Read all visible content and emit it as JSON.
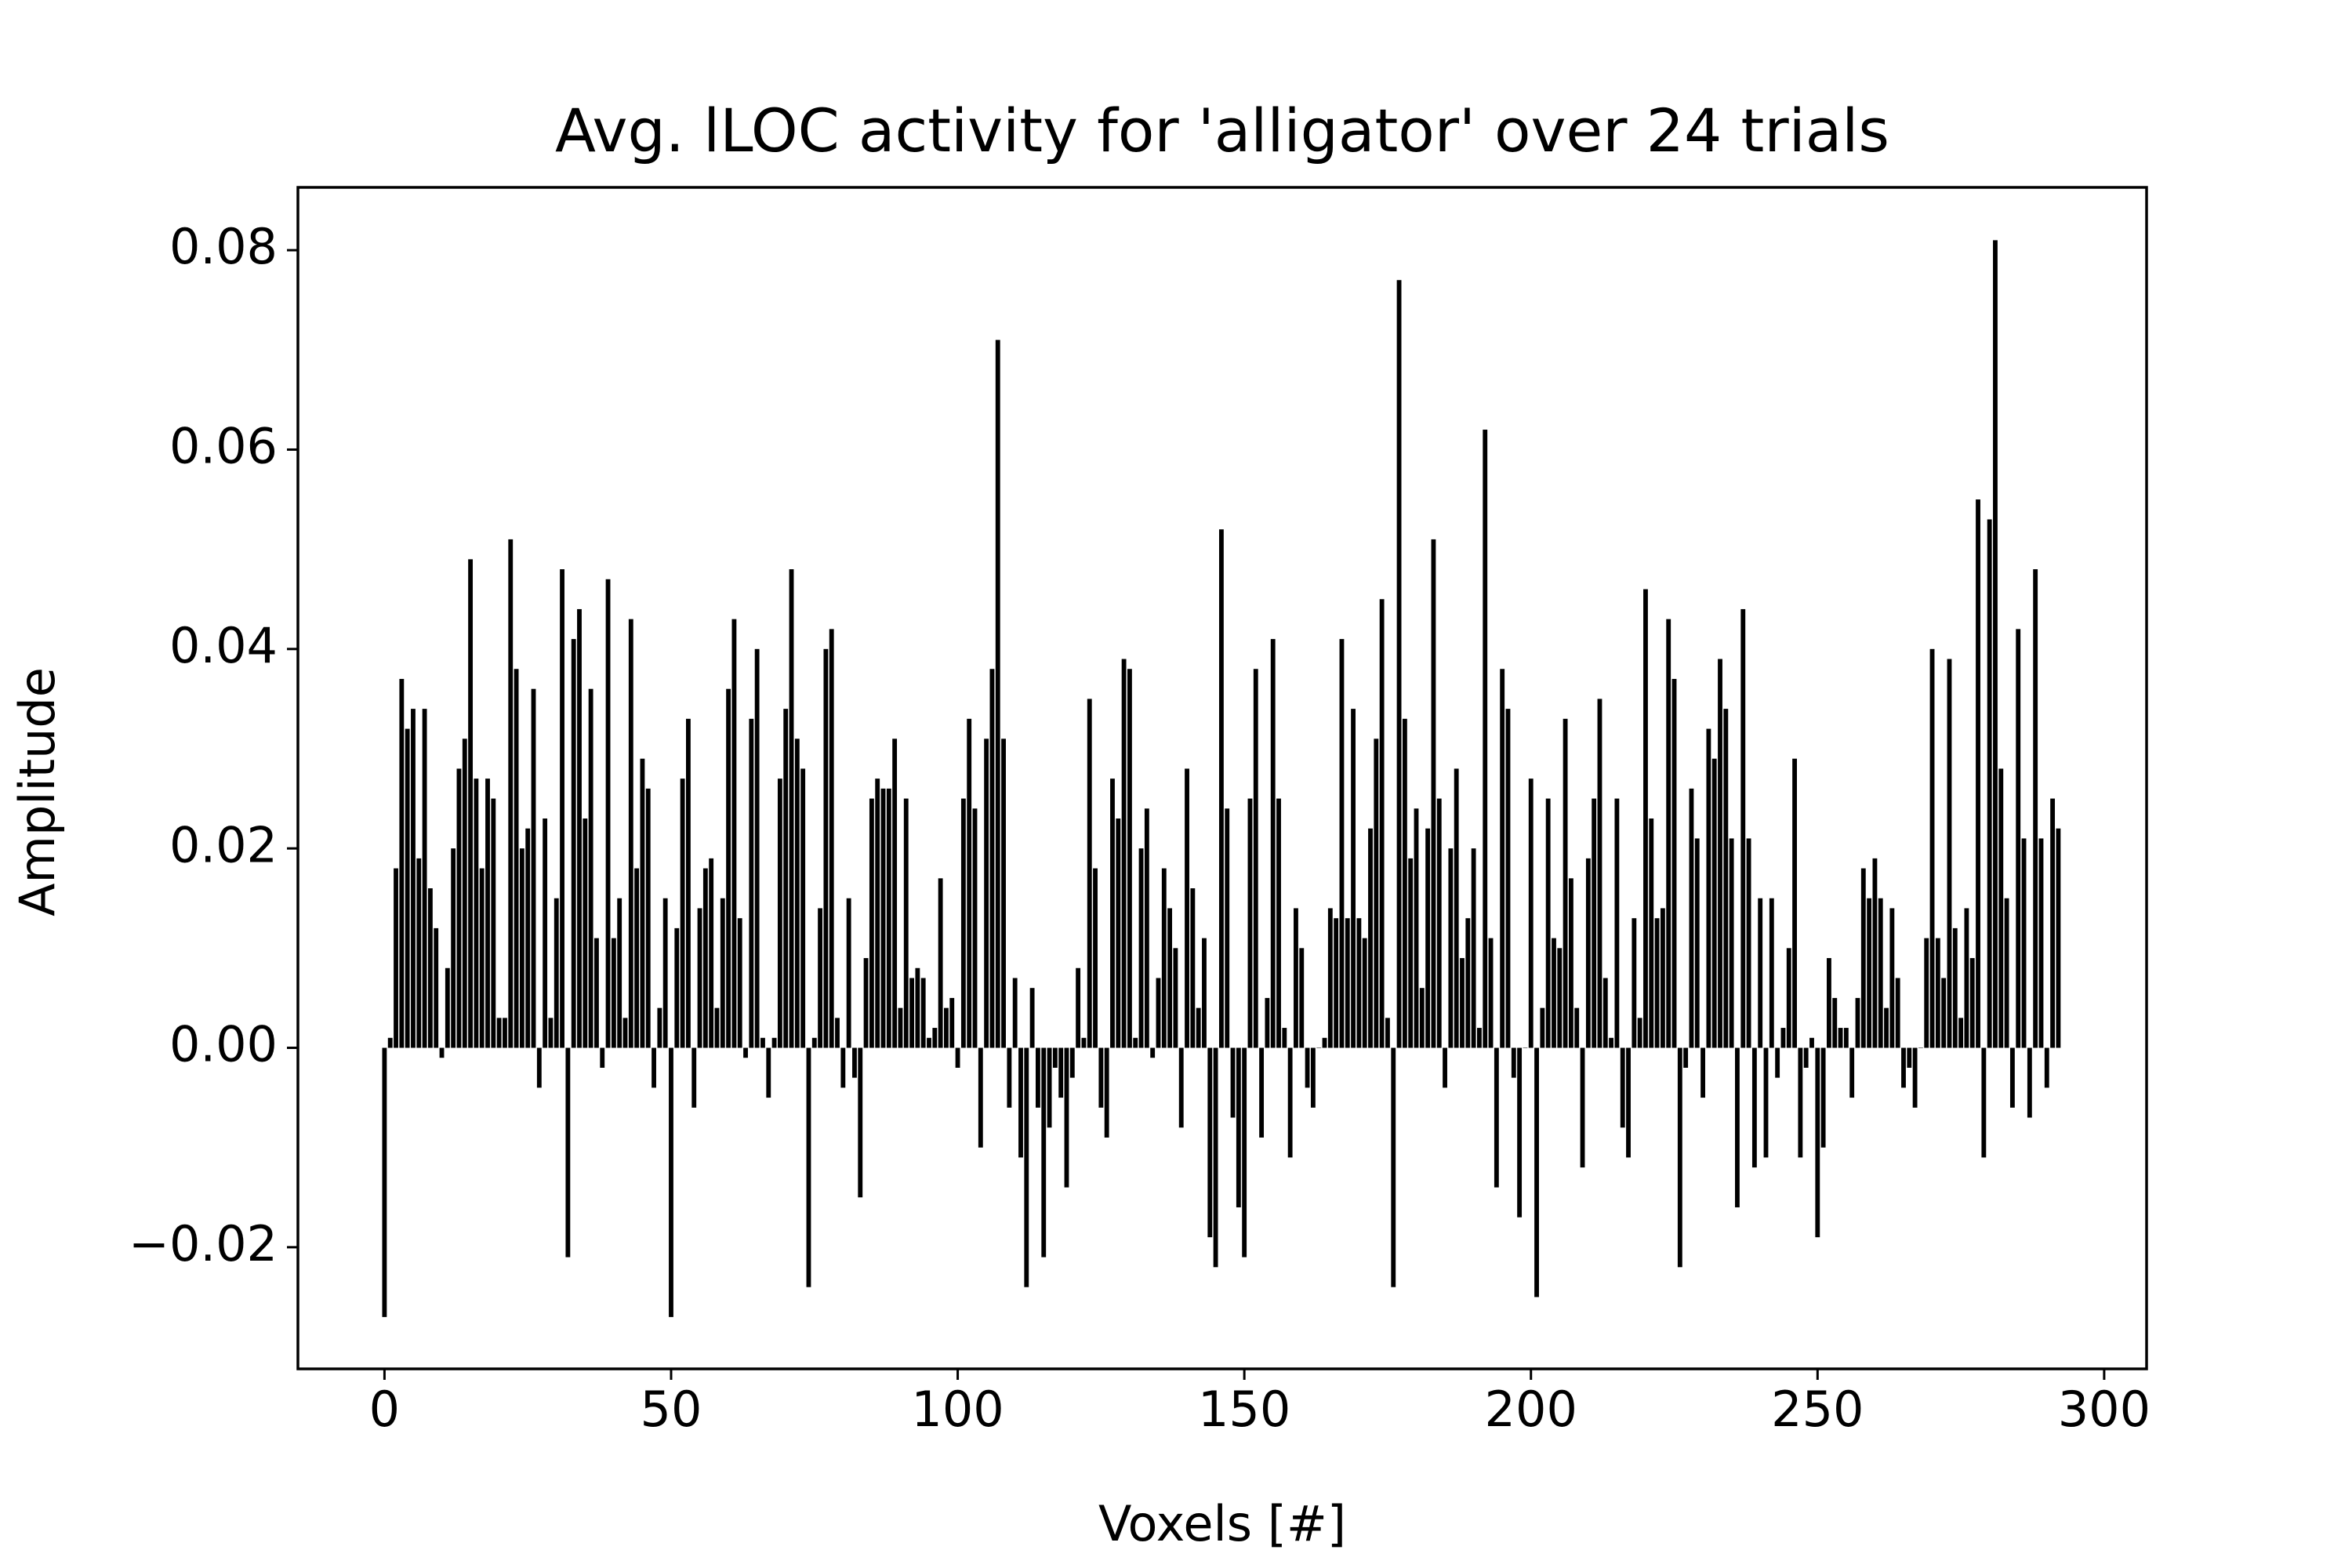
{
  "chart_data": {
    "type": "bar",
    "title": "Avg. lLOC activity for 'alligator' over 24 trials",
    "x_label": "Voxels [#]",
    "y_label": "Amplitude",
    "color": "#000000",
    "x": [
      0,
      1,
      2,
      3,
      4,
      5,
      6,
      7,
      8,
      9,
      10,
      11,
      12,
      13,
      14,
      15,
      16,
      17,
      18,
      19,
      20,
      21,
      22,
      23,
      24,
      25,
      26,
      27,
      28,
      29,
      30,
      31,
      32,
      33,
      34,
      35,
      36,
      37,
      38,
      39,
      40,
      41,
      42,
      43,
      44,
      45,
      46,
      47,
      48,
      49,
      50,
      51,
      52,
      53,
      54,
      55,
      56,
      57,
      58,
      59,
      60,
      61,
      62,
      63,
      64,
      65,
      66,
      67,
      68,
      69,
      70,
      71,
      72,
      73,
      74,
      75,
      76,
      77,
      78,
      79,
      80,
      81,
      82,
      83,
      84,
      85,
      86,
      87,
      88,
      89,
      90,
      91,
      92,
      93,
      94,
      95,
      96,
      97,
      98,
      99,
      100,
      101,
      102,
      103,
      104,
      105,
      106,
      107,
      108,
      109,
      110,
      111,
      112,
      113,
      114,
      115,
      116,
      117,
      118,
      119,
      120,
      121,
      122,
      123,
      124,
      125,
      126,
      127,
      128,
      129,
      130,
      131,
      132,
      133,
      134,
      135,
      136,
      137,
      138,
      139,
      140,
      141,
      142,
      143,
      144,
      145,
      146,
      147,
      148,
      149,
      150,
      151,
      152,
      153,
      154,
      155,
      156,
      157,
      158,
      159,
      160,
      161,
      162,
      163,
      164,
      165,
      166,
      167,
      168,
      169,
      170,
      171,
      172,
      173,
      174,
      175,
      176,
      177,
      178,
      179,
      180,
      181,
      182,
      183,
      184,
      185,
      186,
      187,
      188,
      189,
      190,
      191,
      192,
      193,
      194,
      195,
      196,
      197,
      198,
      199,
      200,
      201,
      202,
      203,
      204,
      205,
      206,
      207,
      208,
      209,
      210,
      211,
      212,
      213,
      214,
      215,
      216,
      217,
      218,
      219,
      220,
      221,
      222,
      223,
      224,
      225,
      226,
      227,
      228,
      229,
      230,
      231,
      232,
      233,
      234,
      235,
      236,
      237,
      238,
      239,
      240,
      241,
      242,
      243,
      244,
      245,
      246,
      247,
      248,
      249,
      250,
      251,
      252,
      253,
      254,
      255,
      256,
      257,
      258,
      259,
      260,
      261,
      262,
      263,
      264,
      265,
      266,
      267,
      268,
      269,
      270,
      271,
      272,
      273,
      274,
      275,
      276,
      277,
      278,
      279,
      280,
      281,
      282,
      283,
      284,
      285,
      286,
      287,
      288,
      289,
      290,
      291,
      292
    ],
    "values": [
      -0.027,
      0.001,
      0.018,
      0.037,
      0.032,
      0.034,
      0.019,
      0.034,
      0.016,
      0.012,
      -0.001,
      0.008,
      0.02,
      0.028,
      0.031,
      0.049,
      0.027,
      0.018,
      0.027,
      0.025,
      0.003,
      0.003,
      0.051,
      0.038,
      0.02,
      0.022,
      0.036,
      -0.004,
      0.023,
      0.003,
      0.015,
      0.048,
      -0.021,
      0.041,
      0.044,
      0.023,
      0.036,
      0.011,
      -0.002,
      0.047,
      0.011,
      0.015,
      0.003,
      0.043,
      0.018,
      0.029,
      0.026,
      -0.004,
      0.004,
      0.015,
      -0.027,
      0.012,
      0.027,
      0.033,
      -0.006,
      0.014,
      0.018,
      0.019,
      0.004,
      0.015,
      0.036,
      0.043,
      0.013,
      -0.001,
      0.033,
      0.04,
      0.001,
      -0.005,
      0.001,
      0.027,
      0.034,
      0.048,
      0.031,
      0.028,
      -0.024,
      0.001,
      0.014,
      0.04,
      0.042,
      0.003,
      -0.004,
      0.015,
      -0.003,
      -0.015,
      0.009,
      0.025,
      0.027,
      0.026,
      0.026,
      0.031,
      0.004,
      0.025,
      0.007,
      0.008,
      0.007,
      0.001,
      0.002,
      0.017,
      0.004,
      0.005,
      -0.002,
      0.025,
      0.033,
      0.024,
      -0.01,
      0.031,
      0.038,
      0.071,
      0.031,
      -0.006,
      0.007,
      -0.011,
      -0.024,
      0.006,
      -0.006,
      -0.021,
      -0.008,
      -0.002,
      -0.005,
      -0.014,
      -0.003,
      0.008,
      0.001,
      0.035,
      0.018,
      -0.006,
      -0.009,
      0.027,
      0.023,
      0.039,
      0.038,
      0.001,
      0.02,
      0.024,
      -0.001,
      0.007,
      0.018,
      0.014,
      0.01,
      -0.008,
      0.028,
      0.016,
      0.004,
      0.011,
      -0.019,
      -0.022,
      0.052,
      0.024,
      -0.007,
      -0.016,
      -0.021,
      0.025,
      0.038,
      -0.009,
      0.005,
      0.041,
      0.025,
      0.002,
      -0.011,
      0.014,
      0.01,
      -0.004,
      -0.006,
      0,
      0.001,
      0.014,
      0.013,
      0.041,
      0.013,
      0.034,
      0.013,
      0.011,
      0.022,
      0.031,
      0.045,
      0.003,
      -0.024,
      0.077,
      0.033,
      0.019,
      0.024,
      0.006,
      0.022,
      0.051,
      0.025,
      -0.004,
      0.02,
      0.028,
      0.009,
      0.013,
      0.02,
      0.002,
      0.062,
      0.011,
      -0.014,
      0.038,
      0.034,
      -0.003,
      -0.017,
      0,
      0.027,
      -0.025,
      0.004,
      0.025,
      0.011,
      0.01,
      0.033,
      0.017,
      0.004,
      -0.012,
      0.019,
      0.025,
      0.035,
      0.007,
      0.001,
      0.025,
      -0.008,
      -0.011,
      0.013,
      0.003,
      0.046,
      0.023,
      0.013,
      0.014,
      0.043,
      0.037,
      -0.022,
      -0.002,
      0.026,
      0.021,
      -0.005,
      0.032,
      0.029,
      0.039,
      0.034,
      0.021,
      -0.016,
      0.044,
      0.021,
      -0.012,
      0.015,
      -0.011,
      0.015,
      -0.003,
      0.002,
      0.01,
      0.029,
      -0.011,
      -0.002,
      0.001,
      -0.019,
      -0.01,
      0.009,
      0.005,
      0.002,
      0.002,
      -0.005,
      0.005,
      0.018,
      0.015,
      0.019,
      0.015,
      0.004,
      0.014,
      0.007,
      -0.004,
      -0.002,
      -0.006,
      0,
      0.011,
      0.04,
      0.011,
      0.007,
      0.039,
      0.012,
      0.003,
      0.014,
      0.009,
      0.055,
      -0.011,
      0.053,
      0.081,
      0.028,
      0.015,
      -0.006,
      0.042,
      0.021,
      -0.007,
      0.048,
      0.021,
      -0.004,
      0.025,
      0.022
    ],
    "xlim": [
      -15.1,
      307.4
    ],
    "ylim": [
      -0.0322,
      0.0863
    ],
    "xticks": [
      0,
      50,
      100,
      150,
      200,
      250,
      300
    ],
    "yticks": [
      {
        "value": -0.02,
        "label": "−0.02"
      },
      {
        "value": 0,
        "label": "0.00"
      },
      {
        "value": 0.02,
        "label": "0.02"
      },
      {
        "value": 0.04,
        "label": "0.04"
      },
      {
        "value": 0.06,
        "label": "0.06"
      },
      {
        "value": 0.08,
        "label": "0.08"
      }
    ],
    "grid": false
  }
}
